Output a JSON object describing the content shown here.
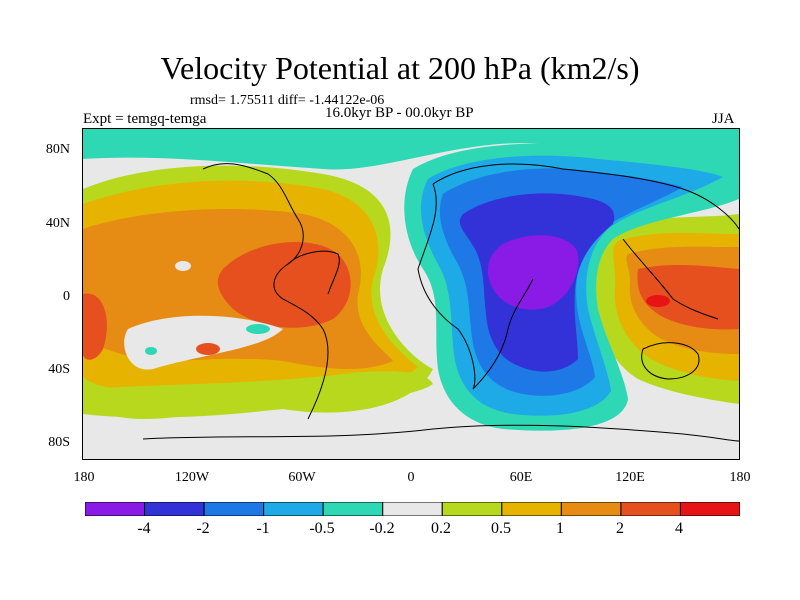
{
  "title": "Velocity Potential at 200 hPa (km2/s)",
  "stats": "rmsd= 1.75511  diff= -1.44122e-06",
  "experiment": "Expt = temgq-temga",
  "period": "16.0kyr BP - 00.0kyr BP",
  "season": "JJA",
  "lat_labels": [
    "80N",
    "40N",
    "0",
    "40S",
    "80S"
  ],
  "lon_labels": [
    "180",
    "120W",
    "60W",
    "0",
    "60E",
    "120E",
    "180"
  ],
  "colorbar": {
    "labels": [
      "-4",
      "-2",
      "-1",
      "-0.5",
      "-0.2",
      "0.2",
      "0.5",
      "1",
      "2",
      "4"
    ],
    "colors": [
      "#8a1ae6",
      "#3232d8",
      "#1e78e6",
      "#1eaae6",
      "#2ed8b4",
      "#e8e8e8",
      "#b8d81e",
      "#e6b400",
      "#e68c14",
      "#e6501e",
      "#e61414"
    ]
  }
}
